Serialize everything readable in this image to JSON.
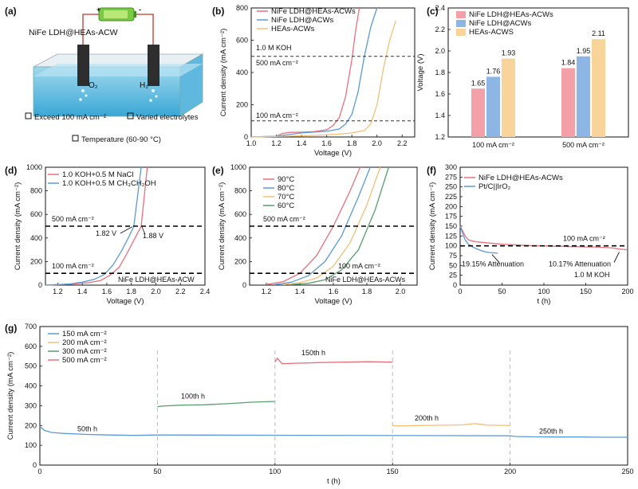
{
  "colors": {
    "red": "#e8707e",
    "blue": "#5b9bd5",
    "yellow": "#f2c079",
    "green": "#5a9e6f",
    "redBar": "#f4a0a8",
    "blueBar": "#8db6e4",
    "yellowBar": "#f8d39a"
  },
  "panel_a": {
    "label": "(a)",
    "device_label": "NiFe LDH@HEAs-ACW",
    "o2": "O₂",
    "h2": "H₂",
    "bullets": [
      "Exceed 100 mA cm⁻²",
      "Varied electrolytes",
      "Temperature (60-90 °C)"
    ],
    "battery_plus": "+",
    "battery_minus": "-",
    "icons": [
      "battery-icon",
      "electrode-icon",
      "electrolyte-tank-icon",
      "checkbox-icon"
    ]
  },
  "chart_data": [
    {
      "id": "b",
      "label": "(b)",
      "type": "line",
      "xlabel": "Voltage (V)",
      "ylabel": "Current density (mA cm⁻²)",
      "xlim": [
        1.0,
        2.3
      ],
      "ylim": [
        0,
        800
      ],
      "xticks": [
        "1.0",
        "1.2",
        "1.4",
        "1.6",
        "1.8",
        "2.0",
        "2.2"
      ],
      "yticks": [
        "0",
        "200",
        "400",
        "600",
        "800"
      ],
      "series": [
        {
          "name": "NiFe LDH@HEAs-ACWs",
          "color": "#e8707e",
          "x": [
            1.0,
            1.2,
            1.25,
            1.3,
            1.4,
            1.5,
            1.6,
            1.65,
            1.7,
            1.75,
            1.8,
            1.83,
            1.86
          ],
          "y": [
            0,
            5,
            22,
            28,
            30,
            33,
            45,
            70,
            120,
            250,
            480,
            660,
            800
          ]
        },
        {
          "name": "NiFe LDH@ACWs",
          "color": "#5b9bd5",
          "x": [
            1.0,
            1.2,
            1.3,
            1.4,
            1.5,
            1.6,
            1.7,
            1.75,
            1.8,
            1.85,
            1.9,
            1.95,
            2.0
          ],
          "y": [
            0,
            5,
            15,
            25,
            30,
            35,
            50,
            80,
            140,
            280,
            500,
            680,
            800
          ]
        },
        {
          "name": "HEAs-ACWs",
          "color": "#f2c079",
          "x": [
            1.0,
            1.3,
            1.5,
            1.7,
            1.8,
            1.9,
            1.95,
            2.0,
            2.05,
            2.1,
            2.15
          ],
          "y": [
            0,
            5,
            10,
            18,
            25,
            40,
            80,
            200,
            420,
            600,
            720
          ]
        }
      ],
      "hlines": [
        {
          "y": 500,
          "label": "500 mA cm⁻²"
        },
        {
          "y": 100,
          "label": "100 mA cm⁻²"
        }
      ],
      "annotations": [
        "1.0 M KOH"
      ],
      "legend": "top-left"
    },
    {
      "id": "c",
      "label": "(c)",
      "type": "bar",
      "ylabel": "Voltage (V)",
      "ylim": [
        1.2,
        2.4
      ],
      "yticks": [
        "1.2",
        "1.4",
        "1.6",
        "1.8",
        "2.0",
        "2.2",
        "2.4"
      ],
      "categories": [
        "100 mA cm⁻²",
        "500 mA cm⁻²"
      ],
      "series": [
        {
          "name": "NiFe LDH@HEAs-ACWs",
          "color": "#f4a0a8",
          "values": [
            1.65,
            1.84
          ],
          "value_labels": [
            "1.65",
            "1.84"
          ]
        },
        {
          "name": "NiFe LDH@ACWs",
          "color": "#8db6e4",
          "values": [
            1.76,
            1.95
          ],
          "value_labels": [
            "1.76",
            "1.95"
          ]
        },
        {
          "name": "HEAs-ACWS",
          "color": "#f8d39a",
          "values": [
            1.93,
            2.11
          ],
          "value_labels": [
            "1.93",
            "2.11"
          ]
        }
      ],
      "legend": "top-left"
    },
    {
      "id": "d",
      "label": "(d)",
      "type": "line",
      "xlabel": "Voltage (V)",
      "ylabel": "Current density (mA cm⁻²)",
      "xlim": [
        1.1,
        2.4
      ],
      "ylim": [
        0,
        1000
      ],
      "xticks": [
        "1.2",
        "1.4",
        "1.6",
        "1.8",
        "2.0",
        "2.2",
        "2.4"
      ],
      "yticks": [
        "0",
        "200",
        "400",
        "600",
        "800",
        "1000"
      ],
      "series": [
        {
          "name": "1.0 KOH+0.5 M NaCl",
          "color": "#e8707e",
          "x": [
            1.1,
            1.3,
            1.45,
            1.55,
            1.62,
            1.7,
            1.76,
            1.82,
            1.88,
            1.93
          ],
          "y": [
            0,
            8,
            20,
            40,
            80,
            150,
            260,
            380,
            500,
            1000
          ]
        },
        {
          "name": "1.0 KOH+0.5 M CH₃CH₂OH",
          "color": "#5b9bd5",
          "x": [
            1.1,
            1.3,
            1.4,
            1.5,
            1.58,
            1.65,
            1.72,
            1.78,
            1.82,
            1.88
          ],
          "y": [
            0,
            10,
            25,
            50,
            90,
            170,
            290,
            410,
            500,
            1000
          ]
        }
      ],
      "hlines": [
        {
          "y": 500,
          "label": "500 mA cm⁻²"
        },
        {
          "y": 100,
          "label": "100 mA cm⁻²"
        }
      ],
      "annotations": [
        "1.82 V",
        "1.88 V",
        "NiFe LDH@HEAs-ACW"
      ],
      "legend": "top-left"
    },
    {
      "id": "e",
      "label": "(e)",
      "type": "line",
      "xlabel": "Voltage (V)",
      "ylabel": "Current density (mA cm⁻²)",
      "xlim": [
        1.1,
        2.1
      ],
      "ylim": [
        0,
        1000
      ],
      "xticks": [
        "1.2",
        "1.4",
        "1.6",
        "1.8",
        "2.0"
      ],
      "yticks": [
        "0",
        "200",
        "400",
        "600",
        "800",
        "1000"
      ],
      "series": [
        {
          "name": "90°C",
          "color": "#e8707e",
          "x": [
            1.2,
            1.3,
            1.4,
            1.5,
            1.6,
            1.7,
            1.76
          ],
          "y": [
            5,
            30,
            100,
            250,
            500,
            800,
            1000
          ]
        },
        {
          "name": "80°C",
          "color": "#5b9bd5",
          "x": [
            1.25,
            1.35,
            1.45,
            1.55,
            1.65,
            1.75,
            1.82
          ],
          "y": [
            5,
            25,
            80,
            200,
            420,
            750,
            1000
          ]
        },
        {
          "name": "70°C",
          "color": "#f2c079",
          "x": [
            1.3,
            1.4,
            1.5,
            1.6,
            1.7,
            1.8,
            1.88
          ],
          "y": [
            5,
            20,
            60,
            160,
            360,
            680,
            1000
          ]
        },
        {
          "name": "60°C",
          "color": "#5a9e6f",
          "x": [
            1.35,
            1.45,
            1.55,
            1.65,
            1.75,
            1.85,
            1.93
          ],
          "y": [
            5,
            15,
            45,
            130,
            300,
            640,
            1000
          ]
        }
      ],
      "hlines": [
        {
          "y": 500,
          "label": "500 mA cm⁻²"
        },
        {
          "y": 100,
          "label": "100 mA cm⁻²"
        }
      ],
      "annotations": [
        "NiFe LDH@HEAs-ACWs"
      ],
      "legend": "top-left"
    },
    {
      "id": "f",
      "label": "(f)",
      "type": "line",
      "xlabel": "t (h)",
      "ylabel": "Current density (mA cm⁻²)",
      "xlim": [
        0,
        200
      ],
      "ylim": [
        0,
        300
      ],
      "xticks": [
        "0",
        "50",
        "100",
        "150",
        "200"
      ],
      "yticks": [
        "0",
        "25",
        "50",
        "75",
        "100",
        "125",
        "150",
        "175",
        "200",
        "225",
        "250",
        "275",
        "300"
      ],
      "series": [
        {
          "name": "NiFe LDH@HEAs-ACWs",
          "color": "#e8707e",
          "x": [
            0,
            3,
            6,
            10,
            15,
            20,
            30,
            40,
            50,
            60,
            70,
            80,
            90,
            100,
            110,
            120,
            130,
            140,
            150,
            160,
            170,
            180,
            190,
            200
          ],
          "y": [
            150,
            138,
            125,
            115,
            112,
            110,
            108,
            106,
            104,
            103,
            102,
            101,
            100,
            100,
            99,
            99,
            98,
            98,
            97,
            97,
            96,
            95,
            92,
            90
          ]
        },
        {
          "name": "Pt/C||IrO₂",
          "color": "#5b9bd5",
          "x": [
            0,
            3,
            6,
            10,
            15,
            20,
            25,
            30,
            35,
            40,
            45
          ],
          "y": [
            150,
            132,
            115,
            104,
            97,
            92,
            88,
            85,
            83,
            82,
            81
          ]
        }
      ],
      "hlines": [
        {
          "y": 100,
          "label": "100 mA cm⁻²"
        }
      ],
      "annotations": [
        "19.15% Attenuation",
        "10.17% Attenuation",
        "1.0 M KOH"
      ],
      "legend": "top-left"
    },
    {
      "id": "g",
      "label": "(g)",
      "type": "line",
      "xlabel": "t (h)",
      "ylabel": "Current density (mA cm⁻²)",
      "xlim": [
        0,
        250
      ],
      "ylim": [
        0,
        700
      ],
      "xticks": [
        "0",
        "50",
        "100",
        "150",
        "200",
        "250"
      ],
      "yticks": [
        "0",
        "100",
        "200",
        "300",
        "400",
        "500",
        "600",
        "700"
      ],
      "series": [
        {
          "name": "150 mA cm⁻²",
          "color": "#5b9bd5",
          "x": [
            0,
            2,
            5,
            10,
            20,
            30,
            40,
            50,
            200,
            202,
            210,
            220,
            230,
            240,
            250
          ],
          "y": [
            195,
            175,
            165,
            160,
            155,
            152,
            150,
            152,
            148,
            145,
            143,
            142,
            142,
            141,
            141
          ]
        },
        {
          "name": "200 mA cm⁻²",
          "color": "#f2c079",
          "x": [
            150,
            152,
            160,
            170,
            180,
            185,
            190,
            200
          ],
          "y": [
            200,
            198,
            200,
            201,
            203,
            210,
            202,
            200
          ]
        },
        {
          "name": "300 mA cm⁻²",
          "color": "#5a9e6f",
          "x": [
            50,
            52,
            60,
            70,
            80,
            90,
            100
          ],
          "y": [
            295,
            298,
            303,
            305,
            310,
            318,
            322
          ]
        },
        {
          "name": "500 mA cm⁻²",
          "color": "#e8707e",
          "x": [
            100,
            101,
            103,
            110,
            120,
            130,
            140,
            150
          ],
          "y": [
            520,
            540,
            512,
            515,
            518,
            520,
            522,
            520
          ]
        }
      ],
      "annotations": [
        "50th h",
        "100th h",
        "150th h",
        "200th h",
        "250th h"
      ],
      "legend": "top-left"
    }
  ]
}
